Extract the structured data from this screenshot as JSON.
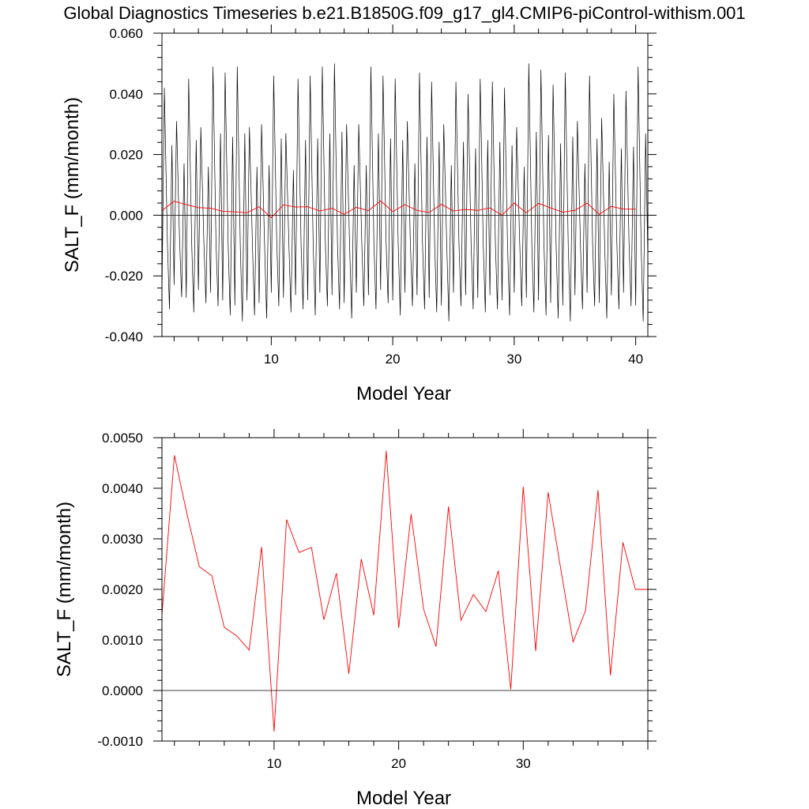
{
  "title": "Global Diagnostics Timeseries b.e21.B1850G.f09_g17_gl4.CMIP6-piControl-withism.001",
  "colors": {
    "monthly": "#000000",
    "annual": "#ff0000",
    "zero_line": "#000000",
    "background": "#ffffff"
  },
  "chart_data": [
    {
      "type": "line",
      "xlabel": "Model Year",
      "ylabel": "SALT_F (mm/month)",
      "xlim": [
        1,
        41
      ],
      "ylim": [
        -0.04,
        0.06
      ],
      "x_ticks": [
        10,
        20,
        30,
        40
      ],
      "x_tick_labels": [
        "10",
        "20",
        "30",
        "40"
      ],
      "y_ticks": [
        -0.04,
        -0.02,
        0.0,
        0.02,
        0.04,
        0.06
      ],
      "y_tick_labels": [
        "-0.040",
        "-0.020",
        "0.000",
        "0.020",
        "0.040",
        "0.060"
      ],
      "reference_line": 0,
      "monthly_cycle": {
        "description": "Monthly series oscillating with a one-year period; annual maxima and minima listed per year",
        "years": [
          1,
          2,
          3,
          4,
          5,
          6,
          7,
          8,
          9,
          10,
          11,
          12,
          13,
          14,
          15,
          16,
          17,
          18,
          19,
          20,
          21,
          22,
          23,
          24,
          25,
          26,
          27,
          28,
          29,
          30,
          31,
          32,
          33,
          34,
          35,
          36,
          37,
          38,
          39,
          40
        ],
        "maxima": [
          0.042,
          0.031,
          0.045,
          0.029,
          0.049,
          0.047,
          0.049,
          0.029,
          0.03,
          0.046,
          0.027,
          0.045,
          0.046,
          0.049,
          0.05,
          0.03,
          0.03,
          0.049,
          0.046,
          0.045,
          0.031,
          0.047,
          0.044,
          0.03,
          0.044,
          0.04,
          0.045,
          0.044,
          0.042,
          0.029,
          0.05,
          0.048,
          0.043,
          0.047,
          0.031,
          0.046,
          0.032,
          0.04,
          0.041,
          0.049
        ],
        "minima": [
          -0.031,
          -0.027,
          -0.032,
          -0.029,
          -0.03,
          -0.033,
          -0.035,
          -0.033,
          -0.034,
          -0.03,
          -0.032,
          -0.031,
          -0.033,
          -0.03,
          -0.031,
          -0.034,
          -0.03,
          -0.031,
          -0.029,
          -0.033,
          -0.03,
          -0.031,
          -0.032,
          -0.035,
          -0.03,
          -0.031,
          -0.032,
          -0.031,
          -0.033,
          -0.03,
          -0.032,
          -0.033,
          -0.034,
          -0.035,
          -0.031,
          -0.03,
          -0.034,
          -0.031,
          -0.03,
          -0.035
        ]
      },
      "series": [
        {
          "x": [
            1,
            2,
            3,
            4,
            5,
            6,
            7,
            8,
            9,
            10,
            11,
            12,
            13,
            14,
            15,
            16,
            17,
            18,
            19,
            20,
            21,
            22,
            23,
            24,
            25,
            26,
            27,
            28,
            29,
            30,
            31,
            32,
            33,
            34,
            35,
            36,
            37,
            38,
            39,
            40
          ],
          "values": [
            0.0015,
            0.0046,
            0.0035,
            0.0025,
            0.0023,
            0.0013,
            0.0011,
            0.0008,
            0.0028,
            -0.0008,
            0.0034,
            0.0027,
            0.0028,
            0.0014,
            0.0023,
            0.0003,
            0.0026,
            0.0015,
            0.0047,
            0.0012,
            0.0035,
            0.0016,
            0.0009,
            0.0036,
            0.0014,
            0.0019,
            0.0016,
            0.0024,
            0.0,
            0.004,
            0.0008,
            0.0039,
            0.0024,
            0.001,
            0.0016,
            0.004,
            0.0003,
            0.0029,
            0.002,
            0.002
          ]
        }
      ]
    },
    {
      "type": "line",
      "xlabel": "Model Year",
      "ylabel": "SALT_F (mm/month)",
      "xlim": [
        1,
        40
      ],
      "ylim": [
        -0.001,
        0.005
      ],
      "x_ticks": [
        10,
        20,
        30
      ],
      "x_tick_labels": [
        "10",
        "20",
        "30"
      ],
      "y_ticks": [
        -0.001,
        0.0,
        0.001,
        0.002,
        0.003,
        0.004,
        0.005
      ],
      "y_tick_labels": [
        "-0.0010",
        "0.0000",
        "0.0010",
        "0.0020",
        "0.0030",
        "0.0040",
        "0.0050"
      ],
      "reference_line": 0,
      "series": [
        {
          "x": [
            1,
            2,
            3,
            4,
            5,
            6,
            7,
            8,
            9,
            10,
            11,
            12,
            13,
            14,
            15,
            16,
            17,
            18,
            19,
            20,
            21,
            22,
            23,
            24,
            25,
            26,
            27,
            28,
            29,
            30,
            31,
            32,
            33,
            34,
            35,
            36,
            37,
            38,
            39,
            40
          ],
          "values": [
            0.0015,
            0.00465,
            0.0035,
            0.00245,
            0.00227,
            0.00125,
            0.00108,
            0.0008,
            0.00284,
            -0.00081,
            0.00338,
            0.00273,
            0.00283,
            0.0014,
            0.00232,
            0.00033,
            0.0026,
            0.00149,
            0.00474,
            0.00124,
            0.00349,
            0.00161,
            0.00087,
            0.00364,
            0.00139,
            0.0019,
            0.00156,
            0.00237,
            2e-05,
            0.00403,
            0.00078,
            0.00392,
            0.00242,
            0.00096,
            0.00158,
            0.00396,
            0.0003,
            0.00293,
            0.002,
            0.002
          ]
        }
      ]
    }
  ]
}
